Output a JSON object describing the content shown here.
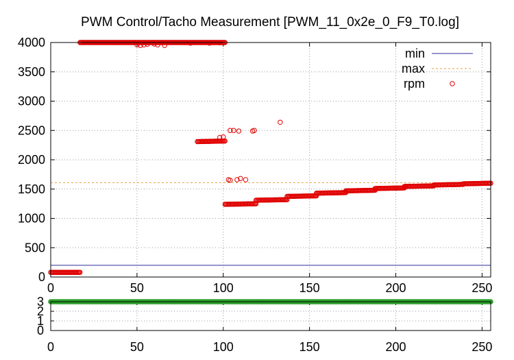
{
  "chart_data": [
    {
      "type": "scatter",
      "title": "PWM Control/Tacho Measurement [PWM_11_0x2e_0_F9_T0.log]",
      "xlabel": "",
      "ylabel": "",
      "xlim": [
        0,
        255
      ],
      "ylim": [
        0,
        4000
      ],
      "xticks": [
        "0",
        "50",
        "100",
        "150",
        "200",
        "250"
      ],
      "yticks": [
        "0",
        "500",
        "1000",
        "1500",
        "2000",
        "2500",
        "3000",
        "3500",
        "4000"
      ],
      "grid": true,
      "legend": "top-right",
      "series": [
        {
          "name": "min",
          "style": "line",
          "color": "#2b2b9a",
          "value": 200
        },
        {
          "name": "max",
          "style": "dashed",
          "color": "#e8a040",
          "value": 1610
        },
        {
          "name": "rpm",
          "style": "points",
          "color": "#e00000",
          "segments": [
            {
              "x_start": 0,
              "x_end": 17,
              "y_start": 80,
              "y_end": 80
            },
            {
              "x_start": 17,
              "x_end": 101,
              "y_start": 4000,
              "y_end": 4000
            },
            {
              "x_start": 85,
              "x_end": 101,
              "y_start": 2310,
              "y_end": 2320
            },
            {
              "x_start": 101,
              "x_end": 119,
              "y_start": 1240,
              "y_end": 1250
            },
            {
              "x_start": 119,
              "x_end": 137,
              "y_start": 1310,
              "y_end": 1320
            },
            {
              "x_start": 137,
              "x_end": 154,
              "y_start": 1375,
              "y_end": 1385
            },
            {
              "x_start": 154,
              "x_end": 171,
              "y_start": 1430,
              "y_end": 1440
            },
            {
              "x_start": 171,
              "x_end": 188,
              "y_start": 1470,
              "y_end": 1480
            },
            {
              "x_start": 188,
              "x_end": 205,
              "y_start": 1510,
              "y_end": 1520
            },
            {
              "x_start": 205,
              "x_end": 222,
              "y_start": 1545,
              "y_end": 1555
            },
            {
              "x_start": 222,
              "x_end": 239,
              "y_start": 1570,
              "y_end": 1580
            },
            {
              "x_start": 239,
              "x_end": 255,
              "y_start": 1590,
              "y_end": 1600
            }
          ],
          "outliers": [
            [
              50,
              3960
            ],
            [
              52,
              3950
            ],
            [
              54,
              3960
            ],
            [
              56,
              3970
            ],
            [
              60,
              3975
            ],
            [
              62,
              3960
            ],
            [
              66,
              3950
            ],
            [
              81,
              3990
            ],
            [
              92,
              3990
            ],
            [
              98,
              3995
            ],
            [
              98,
              2380
            ],
            [
              100,
              2390
            ],
            [
              104,
              2500
            ],
            [
              106,
              2500
            ],
            [
              109,
              2490
            ],
            [
              117,
              2490
            ],
            [
              118,
              2500
            ],
            [
              133,
              2640
            ],
            [
              103,
              1660
            ],
            [
              104,
              1650
            ],
            [
              108,
              1660
            ],
            [
              110,
              1680
            ],
            [
              113,
              1660
            ]
          ]
        }
      ]
    },
    {
      "type": "scatter",
      "title": "",
      "xlabel": "",
      "ylabel": "",
      "xlim": [
        0,
        255
      ],
      "ylim": [
        0,
        3
      ],
      "xticks": [
        "0",
        "50",
        "100",
        "150",
        "200",
        "250"
      ],
      "yticks": [
        "0",
        "1",
        "2",
        "3"
      ],
      "grid": true,
      "series": [
        {
          "name": "",
          "style": "points",
          "color": "#2ca02c",
          "x_start": 0,
          "x_end": 255,
          "value": 3
        }
      ]
    }
  ]
}
